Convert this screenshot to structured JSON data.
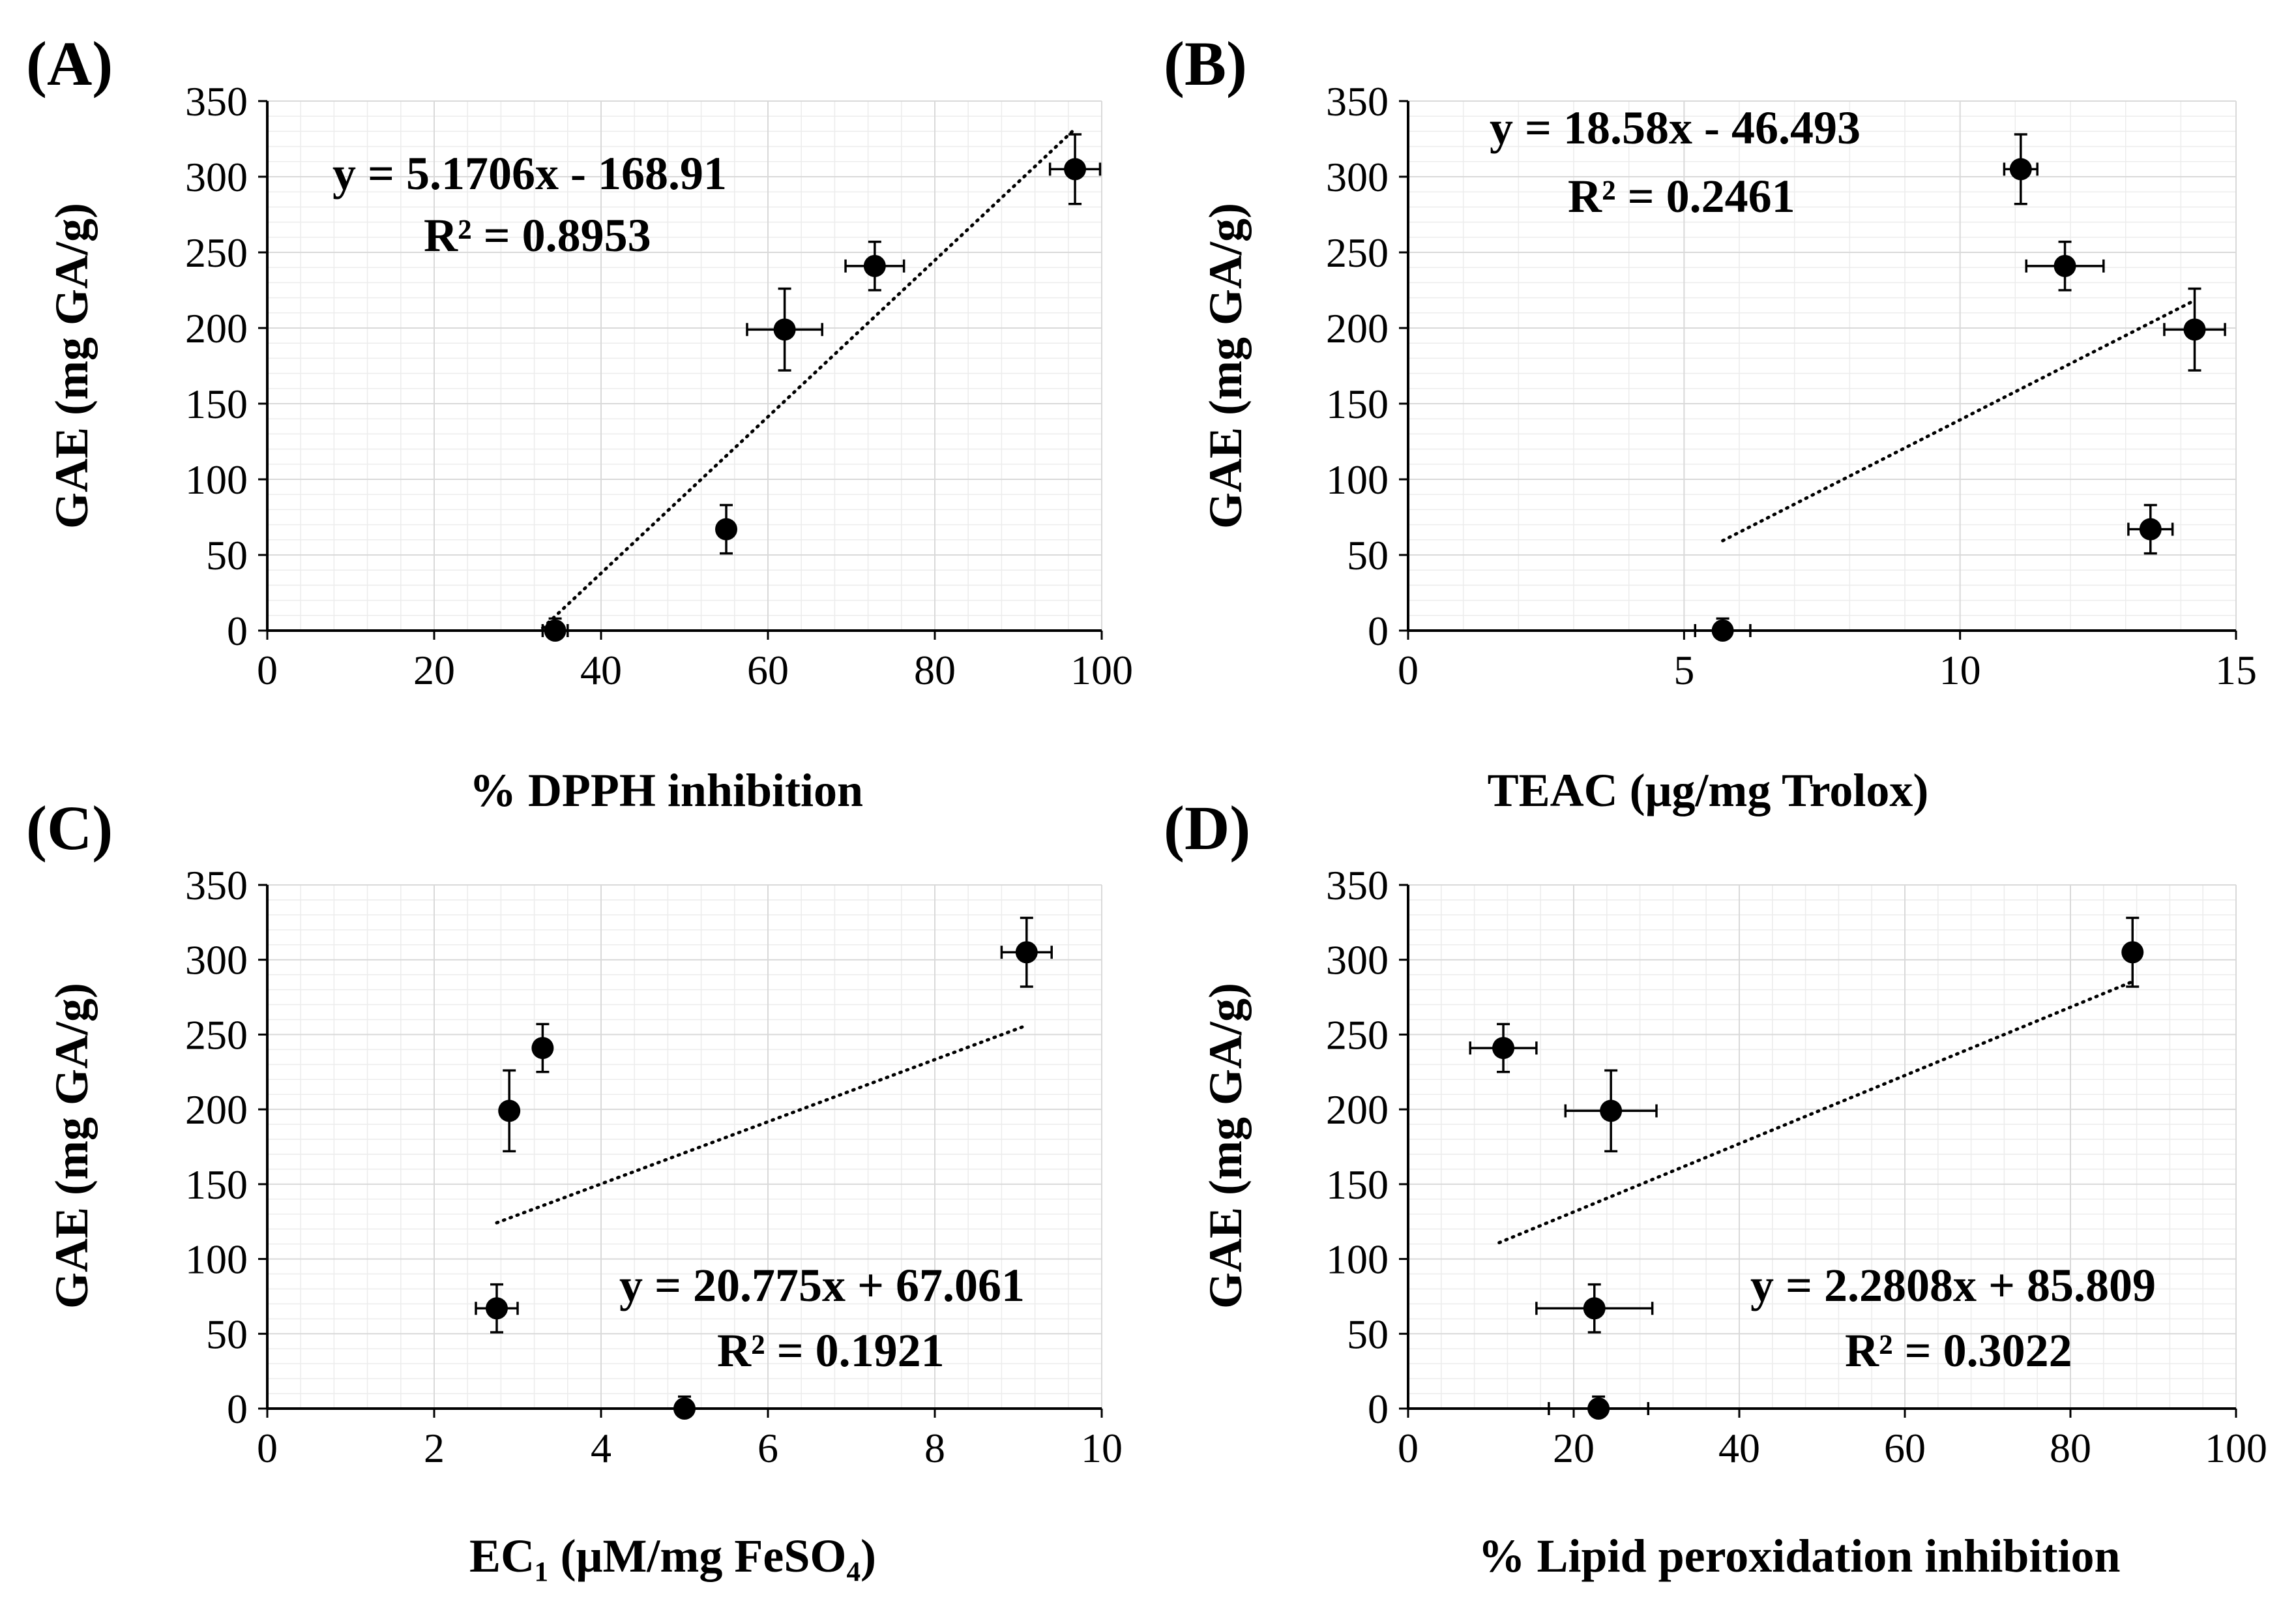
{
  "chart_data": [
    {
      "type": "scatter",
      "panel_label": "(A)",
      "xlabel": "% DPPH inhibition",
      "ylabel": "GAE (mg GA/g)",
      "xlim": [
        0,
        100
      ],
      "ylim": [
        0,
        350
      ],
      "xticks": [
        0,
        20,
        40,
        60,
        80,
        100
      ],
      "yticks": [
        0,
        50,
        100,
        150,
        200,
        250,
        300,
        350
      ],
      "points": [
        {
          "x": 34.5,
          "y": 0,
          "xerr": 1.5,
          "yerr": 8
        },
        {
          "x": 55,
          "y": 67,
          "xerr": 0,
          "yerr": 16
        },
        {
          "x": 62,
          "y": 199,
          "xerr": 4.5,
          "yerr": 27
        },
        {
          "x": 72.8,
          "y": 241,
          "xerr": 3.5,
          "yerr": 16
        },
        {
          "x": 96.8,
          "y": 305,
          "xerr": 3,
          "yerr": 23
        }
      ],
      "trendline": {
        "slope": 5.1706,
        "intercept": -168.91,
        "x_start": 33,
        "x_end": 96.8
      },
      "equation": "y = 5.1706x - 168.91",
      "r2": "R² = 0.8953"
    },
    {
      "type": "scatter",
      "panel_label": "(B)",
      "xlabel": "TEAC (μg/mg Trolox)",
      "ylabel": "GAE (mg GA/g)",
      "xlim": [
        0,
        15
      ],
      "ylim": [
        0,
        350
      ],
      "xticks": [
        0,
        5,
        10,
        15
      ],
      "yticks": [
        0,
        50,
        100,
        150,
        200,
        250,
        300,
        350
      ],
      "points": [
        {
          "x": 5.7,
          "y": 0,
          "xerr": 0.5,
          "yerr": 8
        },
        {
          "x": 11.1,
          "y": 305,
          "xerr": 0.3,
          "yerr": 23
        },
        {
          "x": 11.9,
          "y": 241,
          "xerr": 0.7,
          "yerr": 16
        },
        {
          "x": 13.45,
          "y": 67,
          "xerr": 0.4,
          "yerr": 16
        },
        {
          "x": 14.25,
          "y": 199,
          "xerr": 0.55,
          "yerr": 27
        }
      ],
      "trendline": {
        "slope": 18.58,
        "intercept": -46.493,
        "x_start": 5.7,
        "x_end": 14.2
      },
      "equation": "y = 18.58x - 46.493",
      "r2": "R² = 0.2461"
    },
    {
      "type": "scatter",
      "panel_label": "(C)",
      "xlabel": "EC₁ (μM/mg FeSO₄)",
      "ylabel": "GAE (mg GA/g)",
      "xlim": [
        0,
        10
      ],
      "ylim": [
        0,
        350
      ],
      "xticks": [
        0,
        2,
        4,
        6,
        8,
        10
      ],
      "yticks": [
        0,
        50,
        100,
        150,
        200,
        250,
        300,
        350
      ],
      "points": [
        {
          "x": 2.75,
          "y": 67,
          "xerr": 0.25,
          "yerr": 16
        },
        {
          "x": 2.9,
          "y": 199,
          "xerr": 0,
          "yerr": 27
        },
        {
          "x": 3.3,
          "y": 241,
          "xerr": 0,
          "yerr": 16
        },
        {
          "x": 5.0,
          "y": 0,
          "xerr": 0,
          "yerr": 8
        },
        {
          "x": 9.1,
          "y": 305,
          "xerr": 0.3,
          "yerr": 23
        }
      ],
      "trendline": {
        "slope": 20.775,
        "intercept": 67.061,
        "x_start": 2.75,
        "x_end": 9.1
      },
      "equation": "y = 20.775x + 67.061",
      "r2": "R² = 0.1921"
    },
    {
      "type": "scatter",
      "panel_label": "(D)",
      "xlabel": "% Lipid peroxidation inhibition",
      "ylabel": "GAE (mg GA/g)",
      "xlim": [
        0,
        100
      ],
      "ylim": [
        0,
        350
      ],
      "xticks": [
        0,
        20,
        40,
        60,
        80,
        100
      ],
      "yticks": [
        0,
        50,
        100,
        150,
        200,
        250,
        300,
        350
      ],
      "points": [
        {
          "x": 11.5,
          "y": 241,
          "xerr": 4,
          "yerr": 16
        },
        {
          "x": 22.5,
          "y": 67,
          "xerr": 7,
          "yerr": 16
        },
        {
          "x": 23,
          "y": 0,
          "xerr": 6,
          "yerr": 8
        },
        {
          "x": 24.5,
          "y": 199,
          "xerr": 5.5,
          "yerr": 27
        },
        {
          "x": 87.5,
          "y": 305,
          "xerr": 0,
          "yerr": 23
        }
      ],
      "trendline": {
        "slope": 2.2808,
        "intercept": 85.809,
        "x_start": 11,
        "x_end": 87.5
      },
      "equation": "y = 2.2808x + 85.809",
      "r2": "R² = 0.3022"
    }
  ]
}
